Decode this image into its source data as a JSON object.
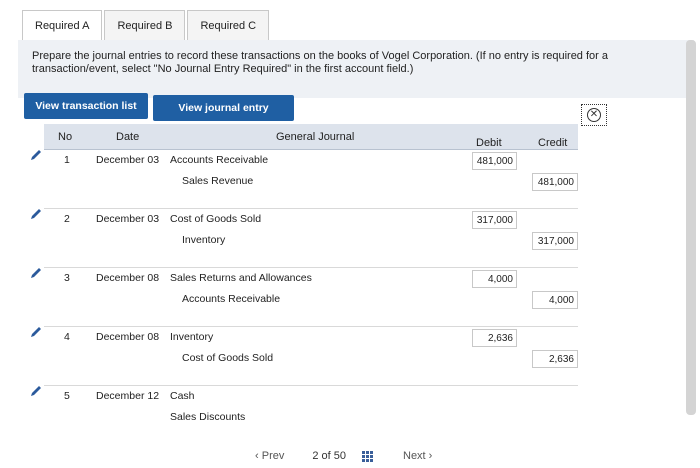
{
  "tabs": [
    {
      "label": "Required A",
      "active": true
    },
    {
      "label": "Required B",
      "active": false
    },
    {
      "label": "Required C",
      "active": false
    }
  ],
  "instruction": "Prepare the journal entries to record these transactions on the books of Vogel Corporation. (If no entry is required for a transaction/event, select \"No Journal Entry Required\" in the first account field.)",
  "buttons": {
    "view_list": "View transaction list",
    "view_worksheet": "View journal entry worksheet",
    "close_icon": "close-circle-icon"
  },
  "table": {
    "headers": {
      "no": "No",
      "date": "Date",
      "journal": "General Journal",
      "debit": "Debit",
      "credit": "Credit"
    },
    "entries": [
      {
        "no": "1",
        "date": "December 03",
        "debit_account": "Accounts Receivable",
        "credit_account": "Sales Revenue",
        "debit": "481,000",
        "credit": "481,000"
      },
      {
        "no": "2",
        "date": "December 03",
        "debit_account": "Cost of Goods Sold",
        "credit_account": "Inventory",
        "debit": "317,000",
        "credit": "317,000"
      },
      {
        "no": "3",
        "date": "December 08",
        "debit_account": "Sales Returns and Allowances",
        "credit_account": "Accounts Receivable",
        "debit": "4,000",
        "credit": "4,000"
      },
      {
        "no": "4",
        "date": "December 08",
        "debit_account": "Inventory",
        "credit_account": "Cost of Goods Sold",
        "debit": "2,636",
        "credit": "2,636"
      },
      {
        "no": "5",
        "date": "December 12",
        "debit_account": "Cash",
        "credit_account": "Sales Discounts",
        "debit": "",
        "credit": ""
      }
    ]
  },
  "pager": {
    "prev": "Prev",
    "page": "2 of 50",
    "next": "Next"
  }
}
